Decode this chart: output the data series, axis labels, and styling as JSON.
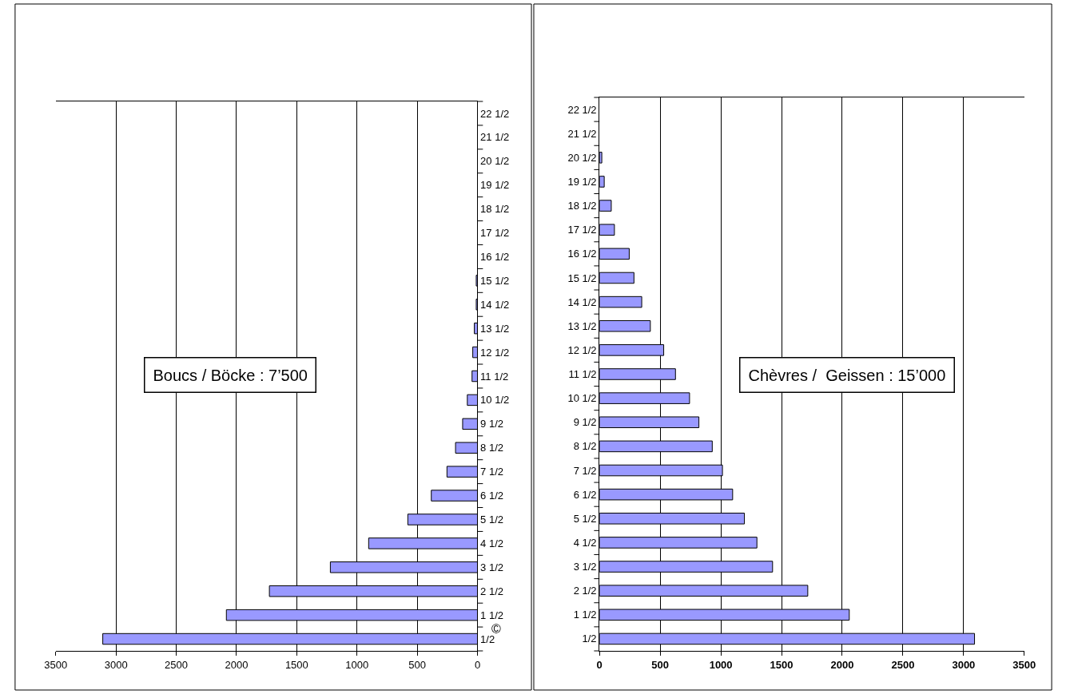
{
  "chart_data": [
    {
      "type": "bar",
      "orientation": "horizontal",
      "categories": [
        "22 1/2",
        "21 1/2",
        "20 1/2",
        "19 1/2",
        "18 1/2",
        "17 1/2",
        "16 1/2",
        "15 1/2",
        "14 1/2",
        "13 1/2",
        "12 1/2",
        "11 1/2",
        "10 1/2",
        "9 1/2",
        "8 1/2",
        "7 1/2",
        "6 1/2",
        "5 1/2",
        "4 1/2",
        "3 1/2",
        "2 1/2",
        "1 1/2",
        "1/2"
      ],
      "values": [
        0,
        0,
        0,
        0,
        0,
        0,
        0,
        10,
        10,
        26,
        39,
        45,
        84,
        123,
        182,
        253,
        383,
        578,
        903,
        1221,
        1727,
        2084,
        3110
      ],
      "color": "#9999ff",
      "xlim": [
        3500,
        0
      ],
      "xticks": [
        3500,
        3000,
        2500,
        2000,
        1500,
        1000,
        500,
        0
      ],
      "grid": "x",
      "annotations": [
        "Boucs / Böcke : 7’500",
        "©"
      ]
    },
    {
      "type": "bar",
      "orientation": "horizontal",
      "categories": [
        "22 1/2",
        "21 1/2",
        "20 1/2",
        "19 1/2",
        "18 1/2",
        "17 1/2",
        "16 1/2",
        "15 1/2",
        "14 1/2",
        "13 1/2",
        "12 1/2",
        "11 1/2",
        "10 1/2",
        "9 1/2",
        "8 1/2",
        "7 1/2",
        "6 1/2",
        "5 1/2",
        "4 1/2",
        "3 1/2",
        "2 1/2",
        "1 1/2",
        "1/2"
      ],
      "values": [
        0,
        0,
        19,
        39,
        97,
        123,
        245,
        284,
        348,
        419,
        529,
        626,
        742,
        819,
        929,
        1013,
        1097,
        1194,
        1297,
        1426,
        1716,
        2058,
        3090
      ],
      "color": "#9999ff",
      "xlim": [
        0,
        3500
      ],
      "xticks": [
        0,
        500,
        1000,
        1500,
        2000,
        2500,
        3000,
        3500
      ],
      "grid": "x",
      "annotations": [
        "Chèvres /  Geissen : 15’000"
      ]
    }
  ]
}
